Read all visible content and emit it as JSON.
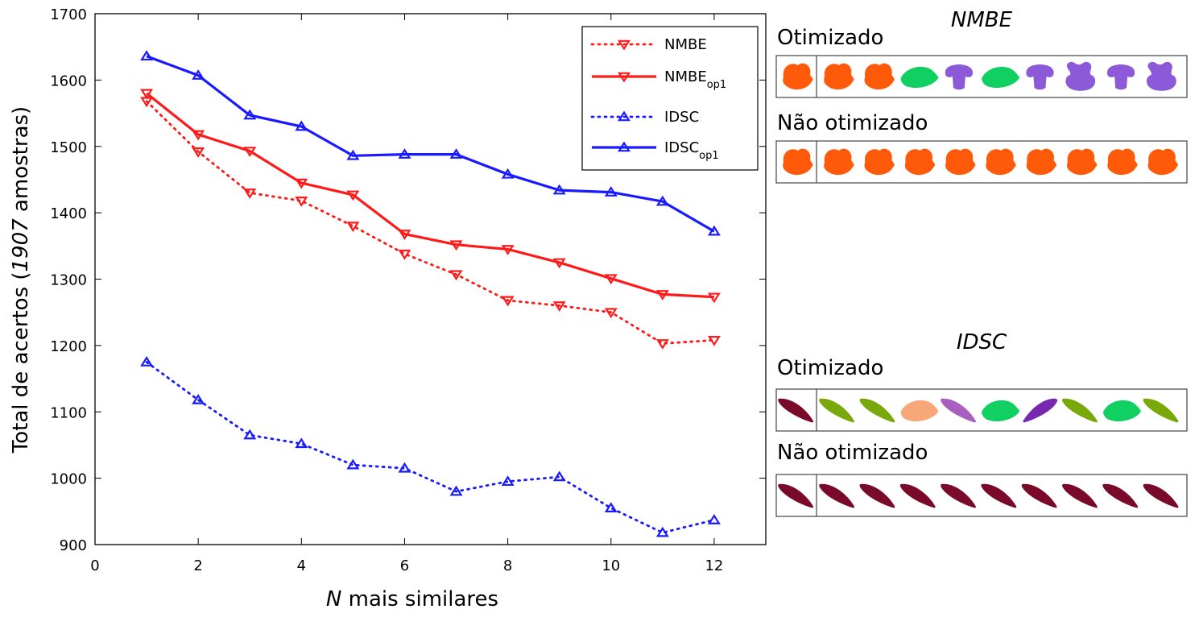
{
  "colors": {
    "nmbe": "#ff1a1a",
    "idsc": "#1a1aff",
    "axis": "#000000",
    "orange": "#ff5a0a",
    "green": "#0fd060",
    "purple": "#8c5ad8",
    "maroon": "#7a0a2a",
    "olive": "#78a80a",
    "peach": "#f8a878",
    "orchid": "#a860c0",
    "violet": "#7828b0"
  },
  "chart_data": {
    "type": "line",
    "xlabel_italic": "N",
    "xlabel_rest": " mais similares",
    "ylabel_pre": "Total de acertos (",
    "ylabel_italic": "1907",
    "ylabel_post": " amostras)",
    "xlim": [
      0,
      13
    ],
    "ylim": [
      900,
      1700
    ],
    "xticks": [
      0,
      2,
      4,
      6,
      8,
      10,
      12
    ],
    "yticks": [
      900,
      1000,
      1100,
      1200,
      1300,
      1400,
      1500,
      1600,
      1700
    ],
    "x": [
      1,
      2,
      3,
      4,
      5,
      6,
      7,
      8,
      9,
      10,
      11,
      12
    ],
    "legend_position": "top-right",
    "series": [
      {
        "name": "NMBE",
        "name_sub": "",
        "color": "nmbe",
        "style": "dotted",
        "marker": "triangle-down",
        "values": [
          1568,
          1492,
          1430,
          1418,
          1380,
          1338,
          1307,
          1268,
          1260,
          1250,
          1203,
          1208
        ]
      },
      {
        "name": "NMBE",
        "name_sub": "op1",
        "color": "nmbe",
        "style": "solid",
        "marker": "triangle-down",
        "values": [
          1580,
          1518,
          1493,
          1445,
          1427,
          1368,
          1352,
          1345,
          1325,
          1301,
          1277,
          1273
        ]
      },
      {
        "name": "IDSC",
        "name_sub": "",
        "color": "idsc",
        "style": "dotted",
        "marker": "triangle-up",
        "values": [
          1175,
          1118,
          1065,
          1052,
          1020,
          1015,
          980,
          995,
          1002,
          955,
          918,
          937
        ]
      },
      {
        "name": "IDSC",
        "name_sub": "op1",
        "color": "idsc",
        "style": "solid",
        "marker": "triangle-up",
        "values": [
          1636,
          1607,
          1547,
          1530,
          1486,
          1488,
          1488,
          1458,
          1434,
          1431,
          1417,
          1372
        ]
      }
    ]
  },
  "panels": {
    "nmbe": {
      "title": "NMBE",
      "rows": [
        {
          "label": "Otimizado",
          "shapes": [
            {
              "shape": "leaf-round",
              "color": "orange"
            },
            {
              "shape": "leaf-round",
              "color": "orange"
            },
            {
              "shape": "leaf-round",
              "color": "orange"
            },
            {
              "shape": "leaf-oval",
              "color": "green"
            },
            {
              "shape": "mushroom",
              "color": "purple"
            },
            {
              "shape": "leaf-oval",
              "color": "green"
            },
            {
              "shape": "mushroom",
              "color": "purple"
            },
            {
              "shape": "bear",
              "color": "purple"
            },
            {
              "shape": "mushroom",
              "color": "purple"
            },
            {
              "shape": "bear",
              "color": "purple"
            }
          ]
        },
        {
          "label": "Não otimizado",
          "shapes": [
            {
              "shape": "leaf-round",
              "color": "orange"
            },
            {
              "shape": "leaf-round",
              "color": "orange"
            },
            {
              "shape": "leaf-round",
              "color": "orange"
            },
            {
              "shape": "leaf-round",
              "color": "orange"
            },
            {
              "shape": "leaf-round",
              "color": "orange"
            },
            {
              "shape": "leaf-round",
              "color": "orange"
            },
            {
              "shape": "leaf-round",
              "color": "orange"
            },
            {
              "shape": "leaf-round",
              "color": "orange"
            },
            {
              "shape": "leaf-round",
              "color": "orange"
            },
            {
              "shape": "leaf-round",
              "color": "orange"
            }
          ]
        }
      ]
    },
    "idsc": {
      "title": "IDSC",
      "rows": [
        {
          "label": "Otimizado",
          "shapes": [
            {
              "shape": "leaf-slim",
              "color": "maroon"
            },
            {
              "shape": "leaf-slim",
              "color": "olive"
            },
            {
              "shape": "leaf-slim",
              "color": "olive"
            },
            {
              "shape": "leaf-oval",
              "color": "peach"
            },
            {
              "shape": "leaf-slim",
              "color": "orchid"
            },
            {
              "shape": "leaf-oval",
              "color": "green"
            },
            {
              "shape": "leaf-slim-rev",
              "color": "violet"
            },
            {
              "shape": "leaf-slim",
              "color": "olive"
            },
            {
              "shape": "leaf-oval",
              "color": "green"
            },
            {
              "shape": "leaf-slim",
              "color": "olive"
            }
          ]
        },
        {
          "label": "Não otimizado",
          "shapes": [
            {
              "shape": "leaf-slim",
              "color": "maroon"
            },
            {
              "shape": "leaf-slim",
              "color": "maroon"
            },
            {
              "shape": "leaf-slim",
              "color": "maroon"
            },
            {
              "shape": "leaf-slim",
              "color": "maroon"
            },
            {
              "shape": "leaf-slim",
              "color": "maroon"
            },
            {
              "shape": "leaf-slim",
              "color": "maroon"
            },
            {
              "shape": "leaf-slim",
              "color": "maroon"
            },
            {
              "shape": "leaf-slim",
              "color": "maroon"
            },
            {
              "shape": "leaf-slim",
              "color": "maroon"
            },
            {
              "shape": "leaf-slim",
              "color": "maroon"
            }
          ]
        }
      ]
    }
  }
}
